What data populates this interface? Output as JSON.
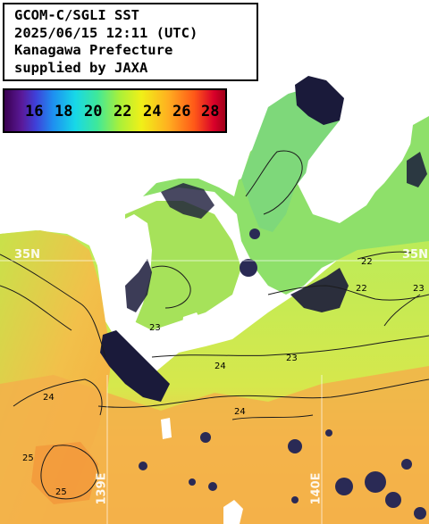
{
  "info": {
    "line1": "GCOM-C/SGLI SST",
    "line2": "2025/06/15 12:11 (UTC)",
    "line3": "Kanagawa Prefecture",
    "line4": "supplied by JAXA"
  },
  "legend": {
    "ticks": [
      "16",
      "18",
      "20",
      "22",
      "24",
      "26",
      "28"
    ],
    "colors": {
      "low": "#3a0050",
      "mid": "#a8f03a",
      "high": "#d8002a"
    }
  },
  "grid_labels": {
    "lat_left": "35N",
    "lat_right": "35N",
    "lon_left": "139E",
    "lon_right": "140E"
  },
  "contour_labels": [
    "22",
    "22",
    "23",
    "23",
    "23",
    "24",
    "24",
    "24",
    "25",
    "25"
  ]
}
